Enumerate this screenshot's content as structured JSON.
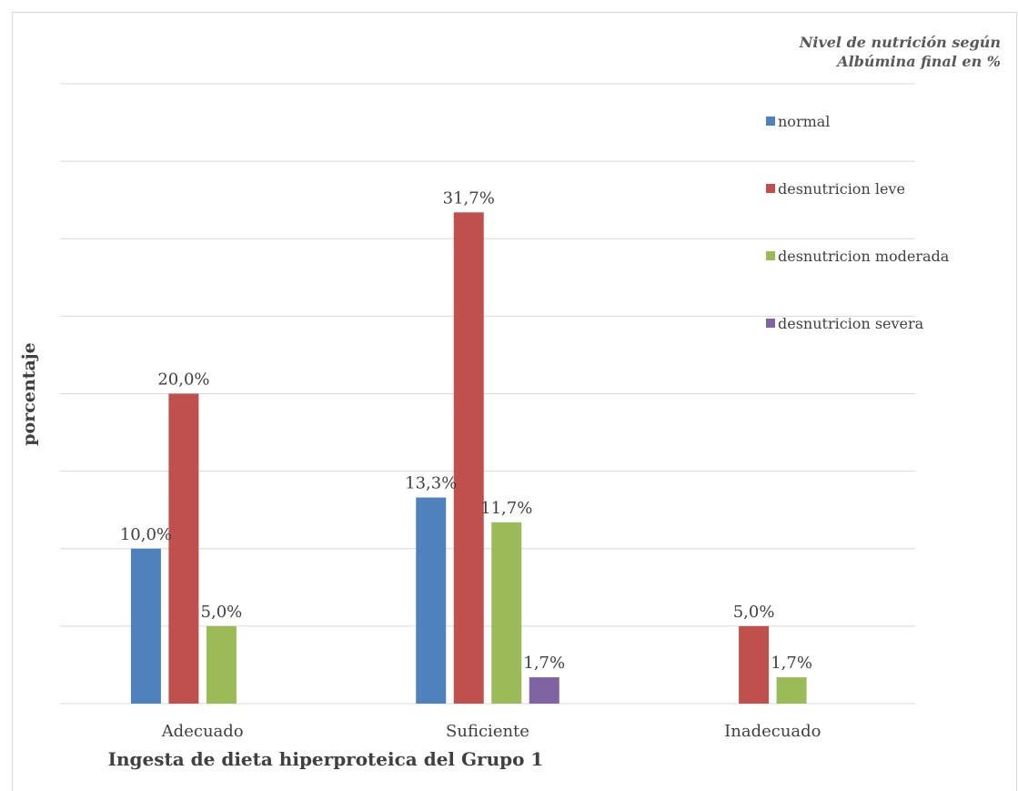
{
  "chart_data": {
    "type": "bar",
    "title": "",
    "xlabel": "Ingesta de dieta hiperproteica del Grupo 1",
    "ylabel": "porcentaje",
    "ylim": [
      0,
      40
    ],
    "grid": true,
    "categories": [
      "Adecuado",
      "Suficiente",
      "Inadecuado"
    ],
    "legend_title": "Nivel de nutrición según Albúmina final en %",
    "legend_position": "right",
    "series": [
      {
        "name": "normal",
        "color": "#4f81bd",
        "values": [
          10.0,
          13.3,
          null
        ],
        "labels": [
          "10,0%",
          "13,3%",
          ""
        ]
      },
      {
        "name": "desnutricion leve",
        "color": "#c0504d",
        "values": [
          20.0,
          31.7,
          5.0
        ],
        "labels": [
          "20,0%",
          "31,7%",
          "5,0%"
        ]
      },
      {
        "name": "desnutricion moderada",
        "color": "#9bbb59",
        "values": [
          5.0,
          11.7,
          1.7
        ],
        "labels": [
          "5,0%",
          "11,7%",
          "1,7%"
        ]
      },
      {
        "name": "desnutricion severa",
        "color": "#8064a2",
        "values": [
          null,
          1.7,
          null
        ],
        "labels": [
          "",
          "1,7%",
          ""
        ]
      }
    ]
  }
}
